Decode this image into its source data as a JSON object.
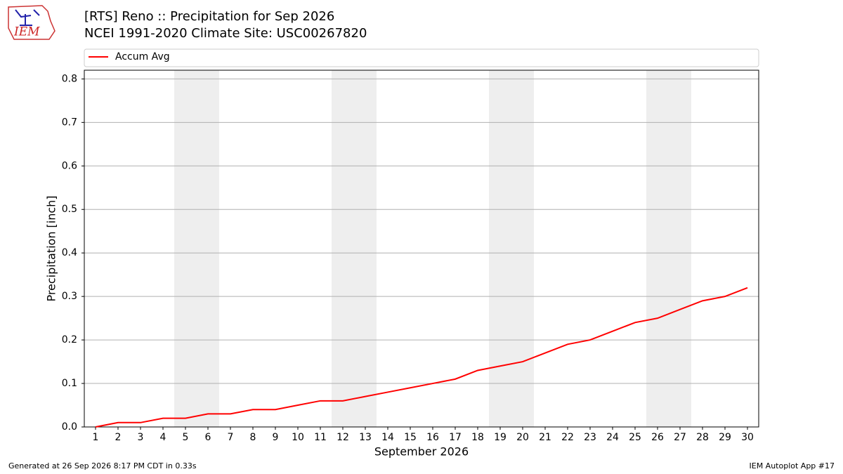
{
  "chart_data": {
    "type": "line",
    "title": "[RTS] Reno :: Precipitation for Sep 2026",
    "subtitle": "NCEI 1991-2020 Climate Site: USC00267820",
    "x_label": "September 2026",
    "y_label": "Precipitation [inch]",
    "x": [
      1,
      2,
      3,
      4,
      5,
      6,
      7,
      8,
      9,
      10,
      11,
      12,
      13,
      14,
      15,
      16,
      17,
      18,
      19,
      20,
      21,
      22,
      23,
      24,
      25,
      26,
      27,
      28,
      29,
      30
    ],
    "series": [
      {
        "name": "Accum Avg",
        "color": "#ff0000",
        "values": [
          0.0,
          0.01,
          0.01,
          0.02,
          0.02,
          0.03,
          0.03,
          0.04,
          0.04,
          0.05,
          0.06,
          0.06,
          0.07,
          0.08,
          0.09,
          0.1,
          0.11,
          0.13,
          0.14,
          0.15,
          0.17,
          0.19,
          0.2,
          0.22,
          0.24,
          0.25,
          0.27,
          0.29,
          0.3,
          0.32
        ]
      }
    ],
    "weekend_spans": [
      [
        4.5,
        6.5
      ],
      [
        11.5,
        13.5
      ],
      [
        18.5,
        20.5
      ],
      [
        25.5,
        27.5
      ]
    ],
    "xlim": [
      0.5,
      30.5
    ],
    "ylim": [
      0,
      0.82
    ],
    "xticks": [
      1,
      2,
      3,
      4,
      5,
      6,
      7,
      8,
      9,
      10,
      11,
      12,
      13,
      14,
      15,
      16,
      17,
      18,
      19,
      20,
      21,
      22,
      23,
      24,
      25,
      26,
      27,
      28,
      29,
      30
    ],
    "yticks": [
      {
        "value": 0,
        "label": "0.0"
      },
      0.1,
      0.2,
      0.3,
      0.4,
      0.5,
      0.6,
      0.7,
      0.8
    ],
    "grid": true,
    "legend": "top"
  },
  "logo": "IEM",
  "footer": {
    "left": "Generated at 26 Sep 2026 8:17 PM CDT in 0.33s",
    "right": "IEM Autoplot App #17"
  }
}
